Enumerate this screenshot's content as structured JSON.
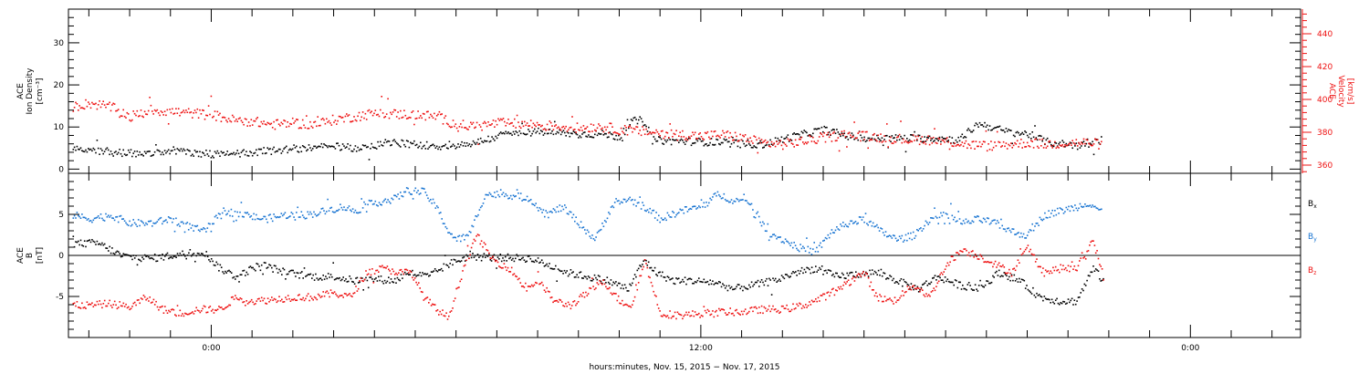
{
  "chart_data": [
    {
      "type": "scatter",
      "panel": "top",
      "ylabel": [
        "ACE",
        "Ion Density",
        "[cm⁻³]"
      ],
      "ylim": [
        -1,
        38
      ],
      "yticks": [
        0,
        10,
        20,
        30
      ],
      "y2label": [
        "ACE",
        "Velocity",
        "[km/s]"
      ],
      "y2lim": [
        355,
        455
      ],
      "y2ticks": [
        360,
        380,
        400,
        420,
        440
      ],
      "xlim": [
        -3.5,
        26.7
      ],
      "data_end_hour": 21.85,
      "series": [
        {
          "axis": "left",
          "color": "#000000",
          "points": [
            [
              -3.4,
              5.4
            ],
            [
              -2.5,
              4.2
            ],
            [
              -1.6,
              3.6
            ],
            [
              -1,
              4.6
            ],
            [
              -0.3,
              4
            ],
            [
              0.3,
              3.5
            ],
            [
              1,
              4.2
            ],
            [
              2,
              5
            ],
            [
              3,
              5.5
            ],
            [
              3.8,
              5
            ],
            [
              4.2,
              6.5
            ],
            [
              5,
              6
            ],
            [
              5.8,
              5.5
            ],
            [
              6.5,
              6.5
            ],
            [
              7.2,
              8.5
            ],
            [
              8,
              9
            ],
            [
              9,
              8.5
            ],
            [
              9.6,
              8.5
            ],
            [
              10,
              7.8
            ],
            [
              10.3,
              11.5
            ],
            [
              10.6,
              11.8
            ],
            [
              10.8,
              7
            ],
            [
              11.5,
              6.8
            ],
            [
              12.5,
              6.5
            ],
            [
              13.5,
              6
            ],
            [
              14.3,
              8
            ],
            [
              15,
              9.5
            ],
            [
              15.6,
              8
            ],
            [
              16,
              7.5
            ],
            [
              17,
              7.5
            ],
            [
              17.8,
              7.5
            ],
            [
              18.3,
              7
            ],
            [
              18.8,
              11
            ],
            [
              19.5,
              9
            ],
            [
              20,
              8.5
            ],
            [
              20.5,
              6.5
            ],
            [
              21,
              6
            ],
            [
              21.5,
              6
            ],
            [
              21.8,
              7
            ]
          ]
        },
        {
          "axis": "right",
          "color": "#ee1111",
          "points": [
            [
              -3.4,
              396
            ],
            [
              -3,
              398
            ],
            [
              -2.5,
              396
            ],
            [
              -2,
              390
            ],
            [
              -1.7,
              392
            ],
            [
              -1.5,
              394
            ],
            [
              -1,
              393
            ],
            [
              -0.5,
              392
            ],
            [
              0,
              391
            ],
            [
              0.5,
              388
            ],
            [
              1,
              387
            ],
            [
              1.5,
              385
            ],
            [
              2,
              386
            ],
            [
              2.5,
              385
            ],
            [
              3,
              388
            ],
            [
              3.5,
              390
            ],
            [
              4,
              392
            ],
            [
              5,
              391
            ],
            [
              5.5,
              390
            ],
            [
              6,
              385
            ],
            [
              6.5,
              384
            ],
            [
              7,
              386
            ],
            [
              8,
              385
            ],
            [
              9,
              383
            ],
            [
              9.5,
              384
            ],
            [
              10,
              382
            ],
            [
              10.5,
              381
            ],
            [
              11,
              380
            ],
            [
              11.5,
              379
            ],
            [
              12,
              378
            ],
            [
              12.5,
              379
            ],
            [
              13,
              377
            ],
            [
              13.5,
              374
            ],
            [
              14,
              373
            ],
            [
              14.5,
              375
            ],
            [
              15,
              377
            ],
            [
              15.5,
              379
            ],
            [
              16,
              378
            ],
            [
              16.5,
              377
            ],
            [
              17,
              376
            ],
            [
              17.5,
              376
            ],
            [
              18,
              375
            ],
            [
              18.5,
              373
            ],
            [
              19,
              372
            ],
            [
              19.5,
              373
            ],
            [
              20,
              374
            ],
            [
              20.5,
              373
            ],
            [
              21,
              374
            ],
            [
              21.5,
              374
            ],
            [
              21.8,
              373
            ]
          ]
        }
      ]
    },
    {
      "type": "scatter",
      "panel": "bottom",
      "ylabel": [
        "ACE",
        "B",
        "[nT]"
      ],
      "ylim": [
        -10,
        10
      ],
      "yticks": [
        -5,
        0,
        5
      ],
      "xlim": [
        -3.5,
        26.7
      ],
      "zero_line": true,
      "legend_position": "right",
      "legend": [
        {
          "label": "B",
          "sub": "x",
          "color": "#000000"
        },
        {
          "label": "B",
          "sub": "y",
          "color": "#1a75d2"
        },
        {
          "label": "B",
          "sub": "z",
          "color": "#ee1111"
        }
      ],
      "series": [
        {
          "name": "Bx",
          "color": "#000000",
          "points": [
            [
              -3.4,
              1.5
            ],
            [
              -2.8,
              1.6
            ],
            [
              -2.2,
              0
            ],
            [
              -1.5,
              -0.3
            ],
            [
              -0.8,
              0.2
            ],
            [
              -0.2,
              0.5
            ],
            [
              0.2,
              -1.5
            ],
            [
              0.6,
              -2.5
            ],
            [
              1.2,
              -1
            ],
            [
              1.8,
              -2
            ],
            [
              2.5,
              -2.5
            ],
            [
              3,
              -2.5
            ],
            [
              3.5,
              -3
            ],
            [
              4,
              -2.8
            ],
            [
              4.5,
              -3
            ],
            [
              4.8,
              -2
            ],
            [
              5.3,
              -2.5
            ],
            [
              5.8,
              -1
            ],
            [
              6.3,
              0
            ],
            [
              6.8,
              -0.2
            ],
            [
              7.3,
              -0.2
            ],
            [
              7.8,
              -0.3
            ],
            [
              8.2,
              -1
            ],
            [
              8.7,
              -2
            ],
            [
              9.2,
              -2.5
            ],
            [
              9.7,
              -3
            ],
            [
              10.2,
              -4
            ],
            [
              10.6,
              -0.5
            ],
            [
              10.9,
              -2
            ],
            [
              11.3,
              -3
            ],
            [
              11.8,
              -3
            ],
            [
              12.3,
              -3.2
            ],
            [
              12.8,
              -4
            ],
            [
              13.3,
              -3.5
            ],
            [
              13.8,
              -3
            ],
            [
              14.3,
              -2
            ],
            [
              14.8,
              -1.5
            ],
            [
              15.3,
              -2.5
            ],
            [
              15.8,
              -2.2
            ],
            [
              16.3,
              -2
            ],
            [
              16.8,
              -3
            ],
            [
              17.3,
              -4
            ],
            [
              17.8,
              -2.5
            ],
            [
              18.3,
              -3.5
            ],
            [
              18.8,
              -4
            ],
            [
              19.3,
              -2
            ],
            [
              19.8,
              -3
            ],
            [
              20.3,
              -5
            ],
            [
              20.8,
              -5.5
            ],
            [
              21.2,
              -5.5
            ],
            [
              21.6,
              -1.5
            ],
            [
              21.85,
              -3
            ]
          ]
        },
        {
          "name": "By",
          "color": "#1a75d2",
          "points": [
            [
              -3.4,
              5
            ],
            [
              -3,
              4.5
            ],
            [
              -2.5,
              5
            ],
            [
              -2,
              4
            ],
            [
              -1.5,
              4
            ],
            [
              -1,
              4.5
            ],
            [
              -0.5,
              3.5
            ],
            [
              -0.2,
              3
            ],
            [
              0.3,
              5.5
            ],
            [
              0.8,
              5
            ],
            [
              1.3,
              4.5
            ],
            [
              1.8,
              5
            ],
            [
              2.3,
              5
            ],
            [
              2.8,
              5.5
            ],
            [
              3.2,
              6
            ],
            [
              3.5,
              5.5
            ],
            [
              4,
              6.5
            ],
            [
              4.5,
              7
            ],
            [
              4.8,
              8
            ],
            [
              5.2,
              7.8
            ],
            [
              5.5,
              6
            ],
            [
              5.8,
              3
            ],
            [
              6,
              2
            ],
            [
              6.3,
              2.5
            ],
            [
              6.7,
              7.5
            ],
            [
              7.2,
              7.5
            ],
            [
              7.8,
              7
            ],
            [
              8.2,
              5
            ],
            [
              8.6,
              6
            ],
            [
              9,
              4
            ],
            [
              9.4,
              2
            ],
            [
              9.8,
              6
            ],
            [
              10.2,
              7
            ],
            [
              10.6,
              6
            ],
            [
              11,
              4.5
            ],
            [
              11.5,
              5.5
            ],
            [
              12,
              6
            ],
            [
              12.4,
              7.5
            ],
            [
              12.8,
              6.8
            ],
            [
              13.2,
              6.5
            ],
            [
              13.6,
              3
            ],
            [
              14,
              2
            ],
            [
              14.4,
              1
            ],
            [
              14.8,
              0.5
            ],
            [
              15.2,
              3
            ],
            [
              15.6,
              4
            ],
            [
              16,
              4.5
            ],
            [
              16.4,
              3
            ],
            [
              16.8,
              2
            ],
            [
              17.2,
              2.5
            ],
            [
              17.6,
              4.5
            ],
            [
              18,
              5
            ],
            [
              18.4,
              4
            ],
            [
              18.8,
              4.5
            ],
            [
              19.2,
              4
            ],
            [
              19.6,
              3
            ],
            [
              20,
              2.5
            ],
            [
              20.4,
              5
            ],
            [
              20.8,
              5.5
            ],
            [
              21.2,
              6
            ],
            [
              21.5,
              6.5
            ],
            [
              21.8,
              5.5
            ]
          ]
        },
        {
          "name": "Bz",
          "color": "#ee1111",
          "points": [
            [
              -3.4,
              -6
            ],
            [
              -3,
              -6
            ],
            [
              -2.5,
              -5.8
            ],
            [
              -2,
              -6.2
            ],
            [
              -1.6,
              -5
            ],
            [
              -1.2,
              -6.5
            ],
            [
              -0.8,
              -7
            ],
            [
              -0.3,
              -6.5
            ],
            [
              0.2,
              -6.5
            ],
            [
              0.6,
              -5
            ],
            [
              1,
              -5.5
            ],
            [
              1.5,
              -5.3
            ],
            [
              2,
              -5
            ],
            [
              2.5,
              -5
            ],
            [
              3,
              -4.5
            ],
            [
              3.4,
              -5
            ],
            [
              3.8,
              -2
            ],
            [
              4.2,
              -1.5
            ],
            [
              4.6,
              -2
            ],
            [
              4.9,
              -2
            ],
            [
              5.2,
              -5
            ],
            [
              5.5,
              -6.5
            ],
            [
              5.8,
              -7.5
            ],
            [
              6.2,
              -1
            ],
            [
              6.5,
              2.5
            ],
            [
              6.9,
              -0.5
            ],
            [
              7.3,
              -1.5
            ],
            [
              7.7,
              -4
            ],
            [
              8,
              -3
            ],
            [
              8.4,
              -5.5
            ],
            [
              8.8,
              -6
            ],
            [
              9.2,
              -4.5
            ],
            [
              9.6,
              -3
            ],
            [
              10,
              -5.5
            ],
            [
              10.3,
              -6
            ],
            [
              10.6,
              -0.5
            ],
            [
              11,
              -7
            ],
            [
              11.5,
              -7.2
            ],
            [
              12,
              -7
            ],
            [
              12.5,
              -6.8
            ],
            [
              13,
              -6.8
            ],
            [
              13.5,
              -6.5
            ],
            [
              14,
              -6.5
            ],
            [
              14.5,
              -6
            ],
            [
              15,
              -5
            ],
            [
              15.5,
              -3.5
            ],
            [
              16,
              -2
            ],
            [
              16.3,
              -5
            ],
            [
              16.7,
              -5.5
            ],
            [
              17.2,
              -3.5
            ],
            [
              17.6,
              -5
            ],
            [
              18,
              -1
            ],
            [
              18.4,
              0.8
            ],
            [
              18.8,
              0
            ],
            [
              19.2,
              -1
            ],
            [
              19.6,
              -2
            ],
            [
              20,
              1
            ],
            [
              20.4,
              -2
            ],
            [
              20.8,
              -1.5
            ],
            [
              21.2,
              -1.5
            ],
            [
              21.6,
              2
            ],
            [
              21.85,
              -2.5
            ]
          ]
        }
      ]
    }
  ],
  "xaxis": {
    "labels": [
      {
        "hour": 0,
        "text": "0:00"
      },
      {
        "hour": 12,
        "text": "12:00"
      },
      {
        "hour": 24,
        "text": "0:00"
      }
    ],
    "title": "hours:minutes, Nov. 15, 2015 − Nov. 17, 2015"
  }
}
